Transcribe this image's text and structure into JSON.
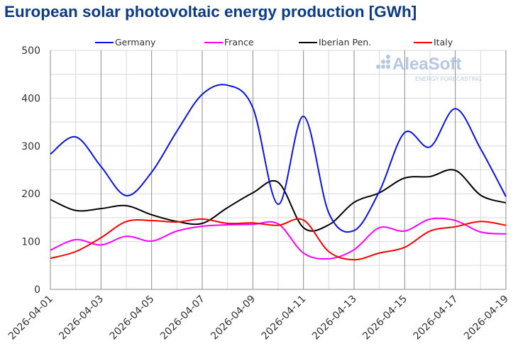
{
  "chart_data": {
    "type": "line",
    "title": "European solar photovoltaic energy production [GWh]",
    "xlabel": "",
    "ylabel": "",
    "ylim": [
      0,
      500
    ],
    "yticks": [
      0,
      100,
      200,
      300,
      400,
      500
    ],
    "x": [
      "2026-04-01",
      "2026-04-02",
      "2026-04-03",
      "2026-04-04",
      "2026-04-05",
      "2026-04-06",
      "2026-04-07",
      "2026-04-08",
      "2026-04-09",
      "2026-04-10",
      "2026-04-11",
      "2026-04-12",
      "2026-04-13",
      "2026-04-14",
      "2026-04-15",
      "2026-04-16",
      "2026-04-17",
      "2026-04-18",
      "2026-04-19"
    ],
    "xtick_labels": [
      "2026-04-01",
      "2026-04-03",
      "2026-04-05",
      "2026-04-07",
      "2026-04-09",
      "2026-04-11",
      "2026-04-13",
      "2026-04-15",
      "2026-04-17",
      "2026-04-19"
    ],
    "grid": true,
    "legend_position": "top",
    "series": [
      {
        "name": "Germany",
        "color": "#0a14e6",
        "values": [
          283,
          319,
          257,
          196,
          245,
          331,
          408,
          427,
          380,
          178,
          362,
          160,
          123,
          205,
          328,
          298,
          378,
          294,
          194
        ]
      },
      {
        "name": "France",
        "color": "#ff00ff",
        "values": [
          82,
          104,
          93,
          111,
          101,
          122,
          132,
          135,
          136,
          137,
          76,
          64,
          83,
          129,
          122,
          147,
          144,
          120,
          116
        ]
      },
      {
        "name": "Iberian Pen.",
        "color": "#000000",
        "values": [
          188,
          165,
          169,
          175,
          156,
          142,
          138,
          171,
          202,
          224,
          129,
          135,
          182,
          202,
          233,
          236,
          249,
          197,
          181
        ]
      },
      {
        "name": "Italy",
        "color": "#ff0000",
        "values": [
          65,
          79,
          108,
          142,
          144,
          141,
          147,
          138,
          139,
          134,
          145,
          79,
          62,
          76,
          88,
          122,
          131,
          142,
          134
        ]
      }
    ]
  },
  "watermark": {
    "brand": "AleaSoft",
    "tagline": "ENERGY FORECASTING"
  }
}
